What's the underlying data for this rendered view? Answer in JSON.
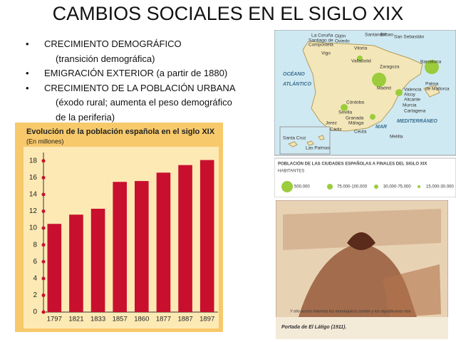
{
  "title": "CAMBIOS SOCIALES EN EL SIGLO XIX",
  "bullets": [
    {
      "marker": "•",
      "text": "CRECIMIENTO DEMOGRÁFICO",
      "notes": [
        "(transición demográfica)"
      ]
    },
    {
      "marker": "•",
      "text": "EMIGRACIÓN EXTERIOR (a partir de 1880)",
      "notes": []
    },
    {
      "marker": "•",
      "text": "CRECIMIENTO DE LA POBLACIÓN URBANA",
      "notes": [
        "(éxodo rural; aumenta el peso demográfico",
        "de la periferia)"
      ]
    }
  ],
  "chart_data": {
    "type": "bar",
    "title": "Evolución de la población española en el siglo XIX",
    "subtitle": "(En millones)",
    "categories": [
      "1797",
      "1821",
      "1833",
      "1857",
      "1860",
      "1877",
      "1887",
      "1897"
    ],
    "values": [
      10.5,
      11.6,
      12.3,
      15.5,
      15.6,
      16.6,
      17.5,
      18.1
    ],
    "color": "#c8102e",
    "ylim": [
      0,
      19
    ],
    "yticks": [
      0,
      2,
      4,
      6,
      8,
      10,
      12,
      14,
      16,
      18
    ],
    "grid": false
  },
  "map": {
    "labels": [
      "La Coruña",
      "Santiago de",
      "Compostela",
      "Gijón",
      "Oviedo",
      "Santander",
      "Bilbao",
      "San Sebastián",
      "Vigo",
      "Vitoria",
      "Valladolid",
      "Zaragoza",
      "Barcelona",
      "Madrid",
      "OCÉANO",
      "ATLÁNTICO",
      "Valencia",
      "Palma",
      "de Mallorca",
      "Alcoy",
      "Alicante",
      "Murcia",
      "Cartagena",
      "Córdoba",
      "Sevilla",
      "Granada",
      "Jerez",
      "Málaga",
      "Cádiz",
      "Ceuta",
      "MAR",
      "MEDITERRÁNEO",
      "Melilla",
      "Santa Cruz",
      "Las Palmas"
    ],
    "legend": {
      "title": "POBLACIÓN DE LAS CIUDADES ESPAÑOLAS A FINALES DEL SIGLO XIX",
      "subtitle": "HABITANTES",
      "items": [
        "500.000",
        "75.000-100.000",
        "30.000-75.000",
        "15.000-30.000"
      ]
    }
  },
  "illustration": {
    "inner_caption": "Y ello ocurre mientras los monárquicos comen y los republicanos ríen.",
    "caption": "Portada de El Látigo (1911)."
  }
}
